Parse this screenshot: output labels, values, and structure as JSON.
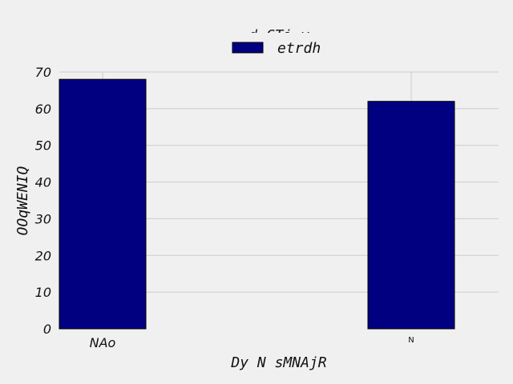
{
  "chart_data": {
    "type": "bar",
    "title": "d CTi y",
    "xlabel": "Dy N sMNAjR",
    "ylabel": "OOqWENIQ",
    "categories": [
      "NAo",
      "N"
    ],
    "series": [
      {
        "name": "etrdh",
        "values": [
          68,
          62
        ]
      }
    ],
    "ylim": [
      0,
      70
    ],
    "yticks": [
      0,
      10,
      20,
      30,
      40,
      50,
      60,
      70
    ],
    "grid": true,
    "legend": "top-center",
    "bar_color": "#000080",
    "background": "#f0f0f0",
    "grid_color": "#cccccc"
  }
}
